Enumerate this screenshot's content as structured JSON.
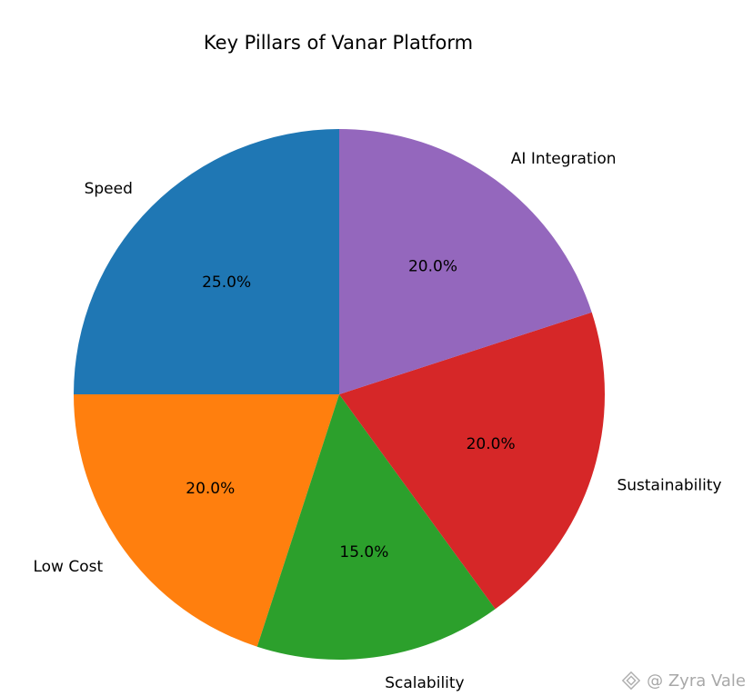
{
  "chart_data": {
    "type": "pie",
    "title": "Key Pillars of Vanar Platform",
    "labels": [
      "Speed",
      "Low Cost",
      "Scalability",
      "Sustainability",
      "AI Integration"
    ],
    "values": [
      25,
      20,
      15,
      20,
      20
    ],
    "percent_labels": [
      "25.0%",
      "20.0%",
      "15.0%",
      "20.0%",
      "20.0%"
    ],
    "colors": [
      "#1f77b4",
      "#ff7f0e",
      "#2ca02c",
      "#d62728",
      "#9467bd"
    ],
    "start_angle_deg": 90,
    "direction": "counterclockwise"
  },
  "watermark": {
    "text": "@ Zyra Vale",
    "icon": "diamond-logo-icon"
  }
}
